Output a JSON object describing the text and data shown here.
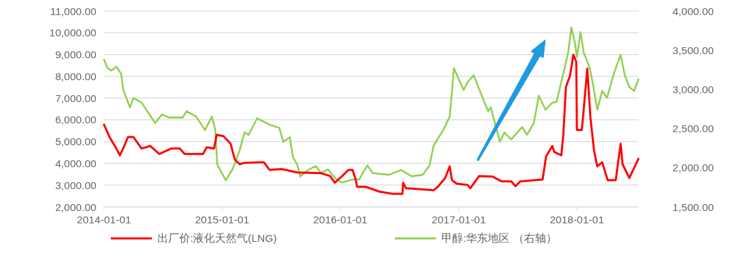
{
  "chart_data": {
    "type": "line",
    "xlim": [
      "2014-01-01",
      "2018-07-10"
    ],
    "xticks": [
      "2014-01-01",
      "2015-01-01",
      "2016-01-01",
      "2017-01-01",
      "2018-01-01"
    ],
    "ylim": [
      2000,
      11000
    ],
    "yticks": [
      {
        "value": 2000,
        "label": "2,000.00"
      },
      {
        "value": 3000,
        "label": "3,000.00"
      },
      {
        "value": 4000,
        "label": "4,000.00"
      },
      {
        "value": 5000,
        "label": "5,000.00"
      },
      {
        "value": 6000,
        "label": "6,000.00"
      },
      {
        "value": 7000,
        "label": "7,000.00"
      },
      {
        "value": 8000,
        "label": "8,000.00"
      },
      {
        "value": 9000,
        "label": "9,000.00"
      },
      {
        "value": 10000,
        "label": "10,000.00"
      },
      {
        "value": 11000,
        "label": "11,000.00"
      }
    ],
    "y2lim": [
      1500,
      4000
    ],
    "y2ticks": [
      {
        "value": 1500,
        "label": "1,500.00"
      },
      {
        "value": 2000,
        "label": "2,000.00"
      },
      {
        "value": 2500,
        "label": "2,500.00"
      },
      {
        "value": 3000,
        "label": "3,000.00"
      },
      {
        "value": 3500,
        "label": "3,500.00"
      },
      {
        "value": 4000,
        "label": "4,000.00"
      }
    ],
    "grid": "y",
    "legend": "bottom",
    "series": [
      {
        "name": "出厂价:液化天然气(LNG)",
        "color": "#ff0000",
        "x": [
          "2014-01-01",
          "2014-01-18",
          "2014-02-08",
          "2014-02-19",
          "2014-03-01",
          "2014-03-16",
          "2014-04-02",
          "2014-04-27",
          "2014-05-24",
          "2014-06-21",
          "2014-07-27",
          "2014-08-23",
          "2014-09-07",
          "2014-11-03",
          "2014-11-14",
          "2014-12-07",
          "2014-12-15",
          "2015-01-05",
          "2015-01-27",
          "2015-02-09",
          "2015-02-24",
          "2015-03-11",
          "2015-05-10",
          "2015-05-27",
          "2015-07-03",
          "2015-08-21",
          "2015-11-02",
          "2015-11-30",
          "2015-12-15",
          "2016-01-05",
          "2016-01-26",
          "2016-02-08",
          "2016-02-18",
          "2016-02-22",
          "2016-03-20",
          "2016-05-01",
          "2016-06-12",
          "2016-07-11",
          "2016-07-13",
          "2016-07-22",
          "2016-09-12",
          "2016-10-15",
          "2016-10-30",
          "2016-11-20",
          "2016-12-04",
          "2016-12-11",
          "2016-12-25",
          "2017-01-28",
          "2017-02-06",
          "2017-03-05",
          "2017-04-16",
          "2017-05-14",
          "2017-06-12",
          "2017-06-25",
          "2017-07-10",
          "2017-09-17",
          "2017-09-28",
          "2017-10-17",
          "2017-10-23",
          "2017-11-14",
          "2017-11-20",
          "2017-11-28",
          "2017-12-11",
          "2017-12-21",
          "2017-12-30",
          "2018-01-01",
          "2018-01-16",
          "2018-01-22",
          "2018-02-02",
          "2018-02-12",
          "2018-02-23",
          "2018-03-05",
          "2018-03-20",
          "2018-04-06",
          "2018-05-01",
          "2018-05-16",
          "2018-05-22",
          "2018-06-12",
          "2018-06-27",
          "2018-07-10"
        ],
        "values": [
          5780,
          5210,
          4680,
          4370,
          4680,
          5210,
          5210,
          4680,
          4800,
          4430,
          4680,
          4680,
          4430,
          4430,
          4740,
          4680,
          5310,
          5250,
          4900,
          4180,
          3960,
          4020,
          4050,
          3700,
          3740,
          3580,
          3550,
          3420,
          3110,
          3390,
          3700,
          3700,
          3230,
          2920,
          2920,
          2700,
          2600,
          2600,
          3110,
          2860,
          2800,
          2760,
          2950,
          3330,
          3860,
          3230,
          3070,
          3010,
          2860,
          3420,
          3390,
          3170,
          3170,
          2950,
          3170,
          3260,
          4330,
          4800,
          4520,
          4370,
          5310,
          7510,
          8040,
          8990,
          8670,
          5530,
          5530,
          6470,
          8360,
          6060,
          4580,
          3860,
          4050,
          3230,
          3230,
          4900,
          3960,
          3330,
          3800,
          4210
        ]
      },
      {
        "name": "甲醇:华东地区 （右轴）",
        "color": "#92d050",
        "axis": "y2",
        "x": [
          "2014-01-01",
          "2014-01-12",
          "2014-01-24",
          "2014-02-08",
          "2014-02-23",
          "2014-03-01",
          "2014-03-22",
          "2014-04-02",
          "2014-04-27",
          "2014-06-08",
          "2014-06-29",
          "2014-07-20",
          "2014-09-01",
          "2014-09-13",
          "2014-10-13",
          "2014-11-09",
          "2014-11-30",
          "2014-12-11",
          "2014-12-17",
          "2015-01-12",
          "2015-02-02",
          "2015-02-24",
          "2015-03-11",
          "2015-03-24",
          "2015-04-19",
          "2015-05-27",
          "2015-06-26",
          "2015-07-09",
          "2015-07-29",
          "2015-08-08",
          "2015-08-21",
          "2015-08-30",
          "2015-09-27",
          "2015-10-18",
          "2015-11-02",
          "2015-11-24",
          "2015-12-15",
          "2016-01-05",
          "2016-02-08",
          "2016-02-29",
          "2016-03-10",
          "2016-03-25",
          "2016-04-10",
          "2016-05-30",
          "2016-07-07",
          "2016-08-08",
          "2016-09-12",
          "2016-10-03",
          "2016-10-15",
          "2016-11-14",
          "2016-12-04",
          "2016-12-11",
          "2016-12-17",
          "2017-01-16",
          "2017-01-28",
          "2017-02-16",
          "2017-03-16",
          "2017-04-02",
          "2017-04-10",
          "2017-05-08",
          "2017-05-22",
          "2017-06-12",
          "2017-07-16",
          "2017-07-31",
          "2017-08-21",
          "2017-09-05",
          "2017-09-26",
          "2017-10-17",
          "2017-10-30",
          "2017-11-20",
          "2017-12-05",
          "2017-12-15",
          "2017-12-26",
          "2018-01-01",
          "2018-01-12",
          "2018-01-22",
          "2018-02-10",
          "2018-02-21",
          "2018-03-05",
          "2018-03-20",
          "2018-04-04",
          "2018-04-25",
          "2018-05-16",
          "2018-05-29",
          "2018-06-12",
          "2018-06-27",
          "2018-07-10"
        ],
        "values": [
          3380,
          3270,
          3240,
          3290,
          3200,
          3000,
          2770,
          2890,
          2830,
          2570,
          2680,
          2640,
          2640,
          2720,
          2650,
          2480,
          2650,
          2480,
          2040,
          1840,
          1980,
          2220,
          2450,
          2420,
          2630,
          2550,
          2510,
          2330,
          2390,
          2130,
          2040,
          1890,
          1980,
          2020,
          1930,
          1980,
          1870,
          1810,
          1850,
          1850,
          1930,
          2030,
          1930,
          1910,
          1970,
          1890,
          1910,
          2030,
          2280,
          2480,
          2650,
          2980,
          3270,
          2990,
          3090,
          3180,
          2890,
          2720,
          2770,
          2330,
          2450,
          2360,
          2520,
          2420,
          2570,
          2920,
          2740,
          2830,
          2840,
          3200,
          3470,
          3790,
          3590,
          3410,
          3730,
          3470,
          3270,
          3030,
          2740,
          2980,
          2890,
          3200,
          3440,
          3180,
          3030,
          2980,
          3130
        ]
      }
    ]
  }
}
